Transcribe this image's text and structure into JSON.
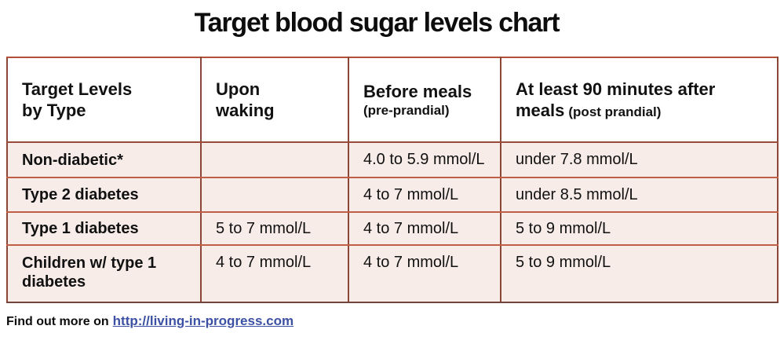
{
  "chart_data": {
    "type": "table",
    "title": "Target blood sugar levels chart",
    "columns": [
      "Target Levels by Type",
      "Upon waking",
      "Before meals (pre-prandial)",
      "At least 90 minutes after meals (post prandial)"
    ],
    "rows": [
      [
        "Non-diabetic*",
        "",
        "4.0 to 5.9 mmol/L",
        "under 7.8 mmol/L"
      ],
      [
        "Type 2 diabetes",
        "",
        "4 to 7 mmol/L",
        "under 8.5 mmol/L"
      ],
      [
        "Type 1 diabetes",
        "5 to 7 mmol/L",
        "4 to 7 mmol/L",
        "5 to 9 mmol/L"
      ],
      [
        "Children w/ type 1 diabetes",
        "4 to 7 mmol/L",
        "4 to 7 mmol/L",
        "5 to 9 mmol/L"
      ]
    ],
    "unit": "mmol/L"
  },
  "table": {
    "headers": [
      {
        "line1": "Target Levels",
        "line2": "by Type"
      },
      {
        "line1": "Upon",
        "line2": "waking"
      },
      {
        "main": "Before meals",
        "sub": "(pre-prandial)"
      },
      {
        "main": "At least 90 minutes after meals",
        "sub": "(post prandial)"
      }
    ]
  },
  "footer": {
    "prefix": "Find out more on",
    "link_text": "http://living-in-progress.com"
  },
  "colors": {
    "row_background": "#f7ece8",
    "header_background": "#ffffff",
    "border_vertical": "#8b4638",
    "border_horizontal": "#c05f48",
    "link_blue": "#3c50a4",
    "text": "#111111"
  }
}
